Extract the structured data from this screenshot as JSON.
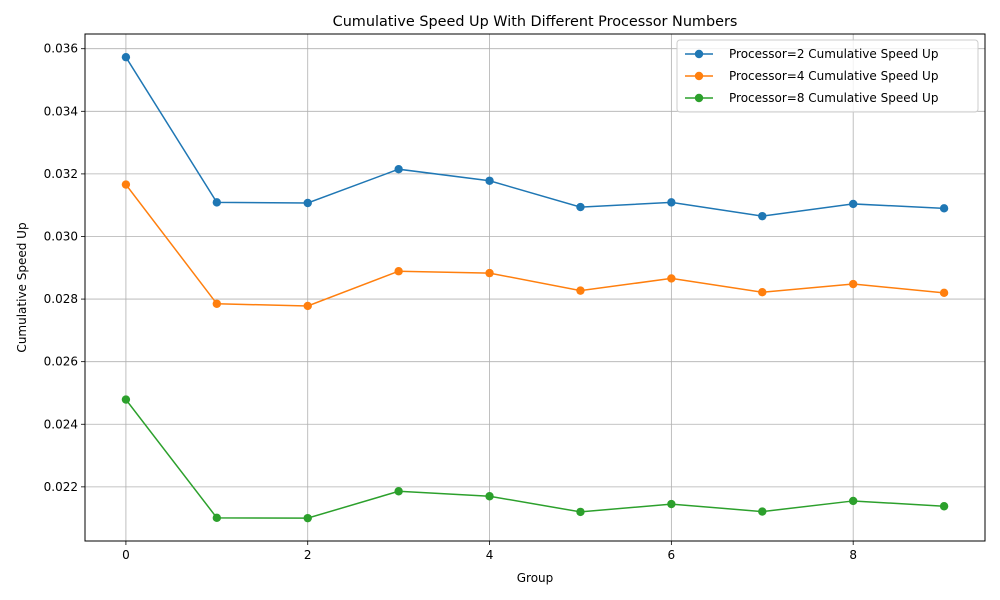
{
  "chart_data": {
    "type": "line",
    "title": "Cumulative Speed Up With Different Processor Numbers",
    "xlabel": "Group",
    "ylabel": "Cumulative Speed Up",
    "x": [
      0,
      1,
      2,
      3,
      4,
      5,
      6,
      7,
      8,
      9
    ],
    "xlim": [
      -0.45,
      9.45
    ],
    "ylim": [
      0.02027,
      0.03647
    ],
    "x_ticks": [
      0,
      2,
      4,
      6,
      8
    ],
    "x_tick_labels": [
      "0",
      "2",
      "4",
      "6",
      "8"
    ],
    "y_ticks": [
      0.022,
      0.024,
      0.026,
      0.028,
      0.03,
      0.032,
      0.034,
      0.036
    ],
    "y_tick_labels": [
      "0.022",
      "0.024",
      "0.026",
      "0.028",
      "0.030",
      "0.032",
      "0.034",
      "0.036"
    ],
    "grid": true,
    "legend_position": "top-right",
    "series": [
      {
        "name": "Processor=2 Cumulative Speed Up",
        "color": "#1f77b4",
        "values": [
          0.03573,
          0.03109,
          0.03107,
          0.03215,
          0.03178,
          0.03094,
          0.03109,
          0.03065,
          0.03104,
          0.0309
        ]
      },
      {
        "name": "Processor=4 Cumulative Speed Up",
        "color": "#ff7f0e",
        "values": [
          0.03166,
          0.02785,
          0.02778,
          0.02889,
          0.02883,
          0.02827,
          0.02866,
          0.02822,
          0.02848,
          0.0282
        ]
      },
      {
        "name": "Processor=8 Cumulative Speed Up",
        "color": "#2ca02c",
        "values": [
          0.02479,
          0.02101,
          0.021,
          0.02186,
          0.0217,
          0.0212,
          0.02145,
          0.02121,
          0.02155,
          0.02138
        ]
      }
    ]
  }
}
